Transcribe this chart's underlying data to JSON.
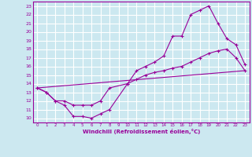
{
  "xlabel": "Windchill (Refroidissement éolien,°C)",
  "bg_color": "#cce8f0",
  "grid_color": "#ffffff",
  "line_color": "#990099",
  "xlim": [
    -0.5,
    23.5
  ],
  "ylim": [
    9.5,
    23.5
  ],
  "xticks": [
    0,
    1,
    2,
    3,
    4,
    5,
    6,
    7,
    8,
    9,
    10,
    11,
    12,
    13,
    14,
    15,
    16,
    17,
    18,
    19,
    20,
    21,
    22,
    23
  ],
  "yticks": [
    10,
    11,
    12,
    13,
    14,
    15,
    16,
    17,
    18,
    19,
    20,
    21,
    22,
    23
  ],
  "line1_x": [
    0,
    1,
    2,
    3,
    4,
    5,
    6,
    7,
    8,
    10,
    11,
    12,
    13,
    14,
    15,
    16,
    17,
    18,
    19,
    20,
    21,
    22,
    23
  ],
  "line1_y": [
    13.5,
    13.0,
    12.0,
    11.5,
    10.2,
    10.2,
    10.0,
    10.5,
    11.0,
    14.0,
    15.5,
    16.0,
    16.5,
    17.2,
    19.5,
    19.5,
    22.0,
    22.5,
    23.0,
    21.0,
    19.2,
    18.5,
    16.2
  ],
  "line2_x": [
    0,
    1,
    2,
    3,
    4,
    5,
    6,
    7,
    8,
    10,
    11,
    12,
    13,
    14,
    15,
    16,
    17,
    18,
    19,
    20,
    21,
    22,
    23
  ],
  "line2_y": [
    13.5,
    13.0,
    12.0,
    12.0,
    11.5,
    11.5,
    11.5,
    12.0,
    13.5,
    14.0,
    14.5,
    15.0,
    15.3,
    15.5,
    15.8,
    16.0,
    16.5,
    17.0,
    17.5,
    17.8,
    18.0,
    17.0,
    15.5
  ],
  "line3_x": [
    0,
    23
  ],
  "line3_y": [
    13.5,
    15.5
  ]
}
